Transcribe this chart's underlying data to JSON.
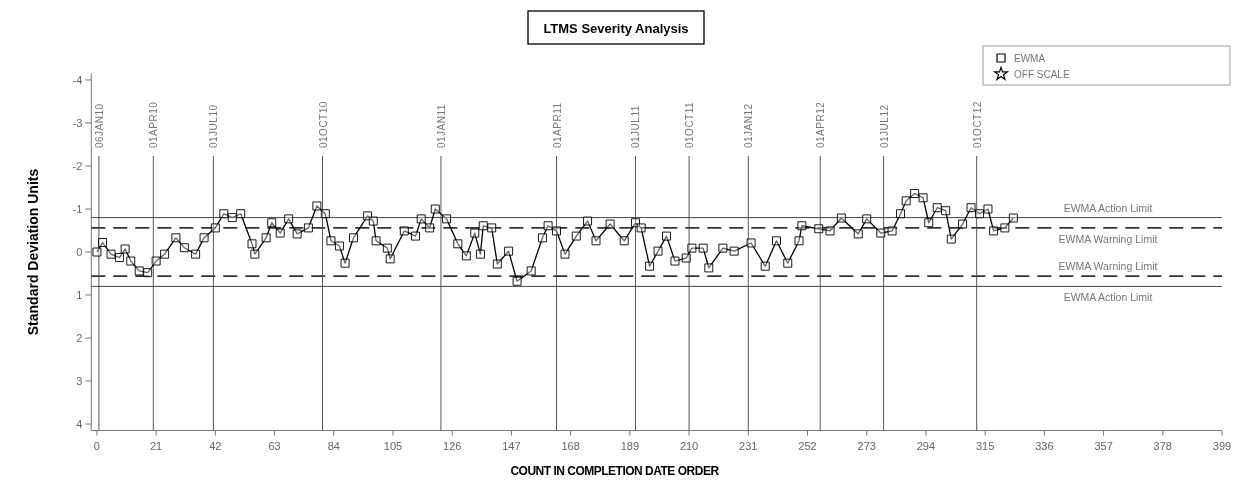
{
  "chart_data": {
    "type": "line",
    "title": "LTMS Severity Analysis",
    "xlabel": "COUNT IN COMPLETION DATE ORDER",
    "ylabel": "Standard Deviation Units",
    "xlim": [
      -2,
      399
    ],
    "ylim": [
      4.15,
      -4.15
    ],
    "xticks": [
      0,
      21,
      42,
      63,
      84,
      105,
      126,
      147,
      168,
      189,
      210,
      231,
      252,
      273,
      294,
      315,
      336,
      357,
      378,
      399
    ],
    "yticks": [
      -4,
      -3,
      -2,
      -1,
      0,
      1,
      2,
      3,
      4
    ],
    "grid": false,
    "legend": "top right",
    "series": [
      {
        "name": "EWMA",
        "color": "#000000",
        "marker": "square",
        "line_style": "solid",
        "x": [
          0,
          2,
          5,
          8,
          10,
          12,
          15,
          18,
          21,
          24,
          28,
          31,
          35,
          38,
          42,
          45,
          48,
          51,
          55,
          56,
          60,
          62,
          65,
          68,
          71,
          75,
          78,
          81,
          83,
          86,
          88,
          91,
          96,
          98,
          99,
          103,
          104,
          109,
          113,
          115,
          118,
          120,
          124,
          128,
          131,
          134,
          136,
          137,
          140,
          142,
          146,
          149,
          154,
          158,
          160,
          163,
          166,
          170,
          174,
          177,
          182,
          187,
          191,
          193,
          196,
          199,
          202,
          205,
          209,
          211,
          215,
          217,
          222,
          226,
          232,
          237,
          241,
          245,
          249,
          250,
          256,
          260,
          264,
          270,
          273,
          278,
          282,
          285,
          287,
          290,
          293,
          295,
          298,
          301,
          303,
          307,
          310,
          313,
          316,
          318,
          322,
          325
        ],
        "values": [
          0.0,
          -0.22,
          0.05,
          0.13,
          -0.07,
          0.21,
          0.44,
          0.48,
          0.21,
          0.05,
          -0.33,
          -0.1,
          0.05,
          -0.33,
          -0.56,
          -0.89,
          -0.8,
          -0.89,
          -0.19,
          0.05,
          -0.33,
          -0.68,
          -0.44,
          -0.77,
          -0.42,
          -0.56,
          -1.07,
          -0.89,
          -0.26,
          -0.14,
          0.26,
          -0.33,
          -0.84,
          -0.72,
          -0.26,
          -0.09,
          0.16,
          -0.49,
          -0.37,
          -0.77,
          -0.56,
          -1.0,
          -0.77,
          -0.19,
          0.09,
          -0.44,
          0.05,
          -0.61,
          -0.56,
          0.28,
          -0.02,
          0.68,
          0.44,
          -0.33,
          -0.61,
          -0.49,
          0.05,
          -0.37,
          -0.72,
          -0.26,
          -0.65,
          -0.26,
          -0.68,
          -0.56,
          0.33,
          -0.02,
          -0.37,
          0.21,
          0.14,
          -0.09,
          -0.09,
          0.37,
          -0.09,
          -0.02,
          -0.21,
          0.33,
          -0.26,
          0.26,
          -0.26,
          -0.61,
          -0.54,
          -0.49,
          -0.79,
          -0.42,
          -0.77,
          -0.44,
          -0.49,
          -0.89,
          -1.19,
          -1.36,
          -1.26,
          -0.68,
          -1.03,
          -0.96,
          -0.3,
          -0.65,
          -1.03,
          -0.89,
          -1.0,
          -0.49,
          -0.56,
          -0.79
        ]
      },
      {
        "name": "OFF SCALE",
        "color": "#000000",
        "marker": "star"
      }
    ],
    "ref_lines": [
      {
        "axis": "y",
        "value": -0.8,
        "label": "EWMA Action Limit",
        "line_style": "solid"
      },
      {
        "axis": "y",
        "value": -0.56,
        "label": "EWMA Warning Limit",
        "line_style": "dashed"
      },
      {
        "axis": "y",
        "value": 0.56,
        "label": "EWMA Warning Limit",
        "line_style": "dashed"
      },
      {
        "axis": "y",
        "value": 0.8,
        "label": "EWMA Action Limit",
        "line_style": "solid"
      },
      {
        "axis": "x",
        "value": 0.7,
        "label": "06JAN10"
      },
      {
        "axis": "x",
        "value": 20,
        "label": "01APR10"
      },
      {
        "axis": "x",
        "value": 41.3,
        "label": "01JUL10"
      },
      {
        "axis": "x",
        "value": 80,
        "label": "01OCT10"
      },
      {
        "axis": "x",
        "value": 122,
        "label": "01JAN11"
      },
      {
        "axis": "x",
        "value": 163,
        "label": "01APR11"
      },
      {
        "axis": "x",
        "value": 191,
        "label": "01JUL11"
      },
      {
        "axis": "x",
        "value": 210,
        "label": "01OCT11"
      },
      {
        "axis": "x",
        "value": 231,
        "label": "01JAN12"
      },
      {
        "axis": "x",
        "value": 256.5,
        "label": "01APR12"
      },
      {
        "axis": "x",
        "value": 279,
        "label": "01JUL12"
      },
      {
        "axis": "x",
        "value": 312,
        "label": "01OCT12"
      }
    ]
  }
}
